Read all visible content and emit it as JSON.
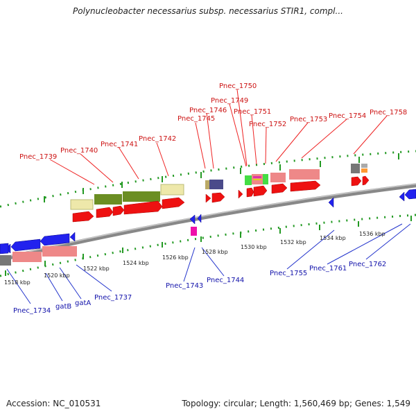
{
  "title": "Polynucleobacter necessarius subsp. necessarius STIR1, compl...",
  "footer": {
    "accession": "Accession: NC_010531",
    "summary": "Topology: circular; Length: 1,560,469 bp; Genes: 1,549"
  },
  "colors": {
    "forward_label": "#cc1111",
    "reverse_label": "#1111aa",
    "tick": "#229922",
    "backbone": "#888888",
    "arrow_red": "#ee1111",
    "arrow_blue": "#2222ee",
    "gene_salmon": "#ee8888",
    "gene_olive": "#6b8e23",
    "gene_khaki": "#eee8aa",
    "gene_gray": "#777777",
    "gene_slate": "#4a4a8a",
    "gene_magenta": "#ee11aa",
    "gene_green": "#44dd44",
    "gene_orange": "#ff9933"
  },
  "forward_labels": [
    "Pnec_1739",
    "Pnec_1740",
    "Pnec_1741",
    "Pnec_1742",
    "Pnec_1745",
    "Pnec_1746",
    "Pnec_1749",
    "Pnec_1750",
    "Pnec_1751",
    "Pnec_1752",
    "Pnec_1753",
    "Pnec_1754",
    "Pnec_1758"
  ],
  "reverse_labels": [
    "Pnec_1734",
    "gatB",
    "gatA",
    "Pnec_1737",
    "Pnec_1743",
    "Pnec_1744",
    "Pnec_1755",
    "Pnec_1761",
    "Pnec_1762"
  ],
  "kbp_labels": [
    "1518 kbp",
    "1520 kbp",
    "1522 kbp",
    "1524 kbp",
    "1526 kbp",
    "1528 kbp",
    "1530 kbp",
    "1532 kbp",
    "1534 kbp",
    "1536 kbp"
  ]
}
